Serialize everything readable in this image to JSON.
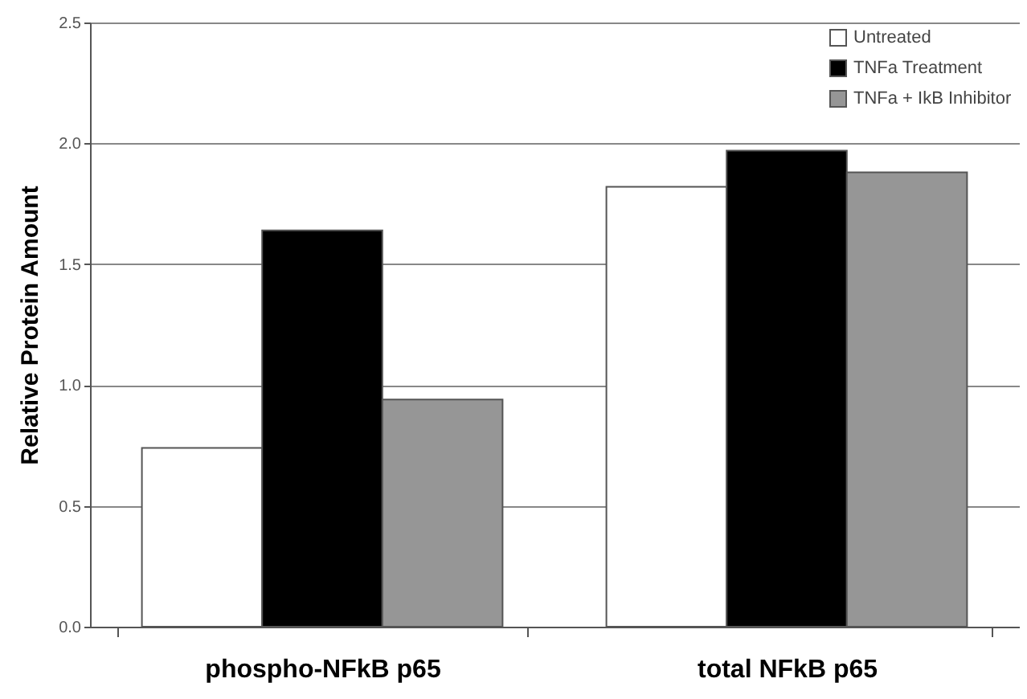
{
  "chart_data": {
    "type": "bar",
    "ylabel": "Relative Protein Amount",
    "categories": [
      "phospho-NFkB p65",
      "total NFkB p65"
    ],
    "series": [
      {
        "name": "Untreated",
        "color": "#ffffff",
        "values": [
          0.74,
          1.82
        ]
      },
      {
        "name": "TNFa Treatment",
        "color": "#000000",
        "values": [
          1.64,
          1.97
        ]
      },
      {
        "name": "TNFa + IkB Inhibitor",
        "color": "#969696",
        "values": [
          0.94,
          1.88
        ]
      }
    ],
    "ylim": [
      0,
      2.5
    ],
    "yticks": [
      {
        "value": 0,
        "label": "0.0"
      },
      {
        "value": 0.5,
        "label": "0.5"
      },
      {
        "value": 1,
        "label": "1.0"
      },
      {
        "value": 1.5,
        "label": "1.5"
      },
      {
        "value": 2,
        "label": "2.0"
      },
      {
        "value": 2.5,
        "label": "2.5"
      }
    ],
    "grid": "y",
    "legend": "top right"
  }
}
